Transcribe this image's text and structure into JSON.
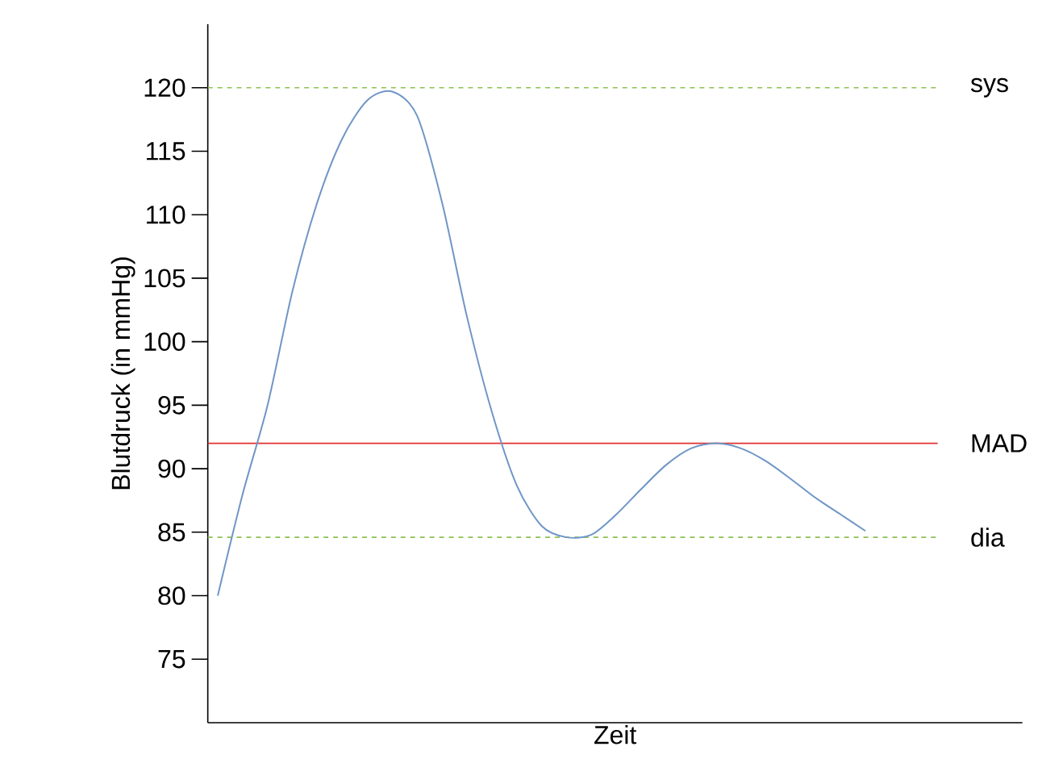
{
  "chart_data": {
    "type": "line",
    "xlabel": "Zeit",
    "ylabel": "Blutdruck (in mmHg)",
    "categories": [
      null,
      null,
      null,
      null,
      null,
      null,
      null,
      null,
      null,
      null,
      null,
      null,
      null,
      null,
      null,
      null,
      null,
      null,
      null,
      null,
      null,
      null,
      null,
      null,
      null,
      null,
      null
    ],
    "series": [
      {
        "color": "#6f96c6",
        "values": [
          80,
          88,
          95,
          104,
          111,
          116,
          119,
          119.7,
          117.8,
          111,
          102,
          94.5,
          88.7,
          85.5,
          84.6,
          84.8,
          86.4,
          88.4,
          90.3,
          91.6,
          92,
          91.6,
          90.6,
          89.2,
          87.7,
          86.4,
          85.1
        ]
      }
    ],
    "ylim": [
      70,
      125
    ],
    "yticks": [
      75,
      80,
      85,
      90,
      95,
      100,
      105,
      110,
      115,
      120
    ],
    "tick_labels": "y",
    "grid": false,
    "marker": "none",
    "line_style": "solid",
    "ref_lines": [
      {
        "axis": "y",
        "value": 120,
        "label": "sys",
        "color": "#8cc152",
        "line_style": "dashed"
      },
      {
        "axis": "y",
        "value": 92,
        "label": "MAD",
        "color": "#e03030",
        "line_style": "solid"
      },
      {
        "axis": "y",
        "value": 84.6,
        "label": "dia",
        "color": "#8cc152",
        "line_style": "dashed"
      }
    ]
  }
}
